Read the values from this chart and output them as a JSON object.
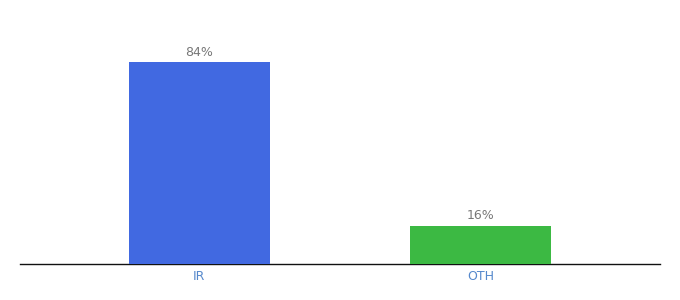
{
  "categories": [
    "IR",
    "OTH"
  ],
  "values": [
    84,
    16
  ],
  "bar_colors": [
    "#4169e1",
    "#3cb943"
  ],
  "label_texts": [
    "84%",
    "16%"
  ],
  "background_color": "#ffffff",
  "bar_positions": [
    0.28,
    0.72
  ],
  "bar_width": 0.22,
  "xlim": [
    0,
    1
  ],
  "ylim": [
    0,
    100
  ],
  "label_fontsize": 9,
  "tick_fontsize": 9,
  "label_color": "#777777",
  "tick_color": "#5588cc"
}
